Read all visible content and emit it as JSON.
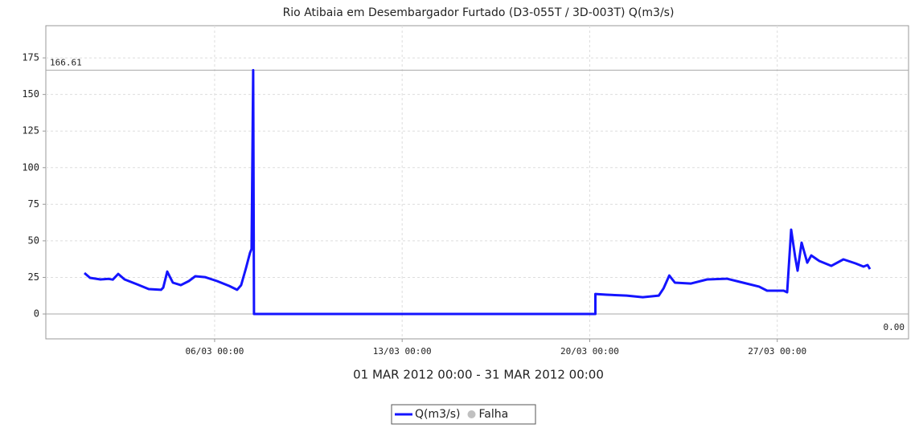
{
  "chart_data": {
    "type": "line",
    "title": "Rio Atibaia em Desembargador Furtado (D3-055T / 3D-003T) Q(m3/s)",
    "x_label": "01 MAR 2012 00:00 - 31 MAR 2012 00:00",
    "xlim": [
      -0.3,
      31.9
    ],
    "ylim": [
      -17,
      197
    ],
    "xticks": [
      {
        "value": 6,
        "label": "06/03 00:00"
      },
      {
        "value": 13,
        "label": "13/03 00:00"
      },
      {
        "value": 20,
        "label": "20/03 00:00"
      },
      {
        "value": 27,
        "label": "27/03 00:00"
      }
    ],
    "yticks": [
      0,
      25,
      50,
      75,
      100,
      125,
      150,
      175
    ],
    "grid": true,
    "series": [
      {
        "name": "Q(m3/s)",
        "color": "#1414ff",
        "x": [
          1.14,
          1.35,
          1.74,
          2.04,
          2.2,
          2.4,
          2.64,
          3.1,
          3.54,
          4.0,
          4.08,
          4.23,
          4.44,
          4.74,
          5.04,
          5.28,
          5.64,
          6.09,
          6.54,
          6.84,
          6.99,
          7.17,
          7.32,
          7.38,
          7.44,
          7.47,
          20.21,
          20.21,
          20.63,
          21.38,
          21.98,
          22.58,
          22.76,
          22.97,
          23.18,
          23.78,
          24.38,
          25.12,
          25.72,
          26.32,
          26.62,
          27.24,
          27.37,
          27.52,
          27.67,
          27.76,
          27.91,
          28.12,
          28.27,
          28.57,
          29.02,
          29.47,
          29.92,
          30.22,
          30.37,
          30.46
        ],
        "values": [
          28,
          24.7,
          23.6,
          24,
          23.5,
          27.4,
          23.6,
          20.3,
          17,
          16.5,
          18,
          29,
          21.4,
          19.7,
          22.5,
          25.8,
          25.2,
          22.5,
          19.2,
          16.5,
          19.7,
          31.3,
          41.7,
          44.4,
          166.61,
          0,
          0,
          13.7,
          13.2,
          12.6,
          11.5,
          12.6,
          17.6,
          26.3,
          21.4,
          20.8,
          23.6,
          24.1,
          21.4,
          18.7,
          15.9,
          15.9,
          14.8,
          57.6,
          38.9,
          29.6,
          48.8,
          35.1,
          40,
          36.2,
          32.9,
          37.3,
          34.6,
          32.4,
          33.5,
          30.7
        ]
      },
      {
        "name": "Falha",
        "color": "#c0c0c0"
      }
    ],
    "annotations": [
      {
        "label": "166.61",
        "value": 166.61,
        "corner": "top-left"
      },
      {
        "label": "0.00",
        "value": 0,
        "corner": "bottom-right"
      }
    ]
  }
}
